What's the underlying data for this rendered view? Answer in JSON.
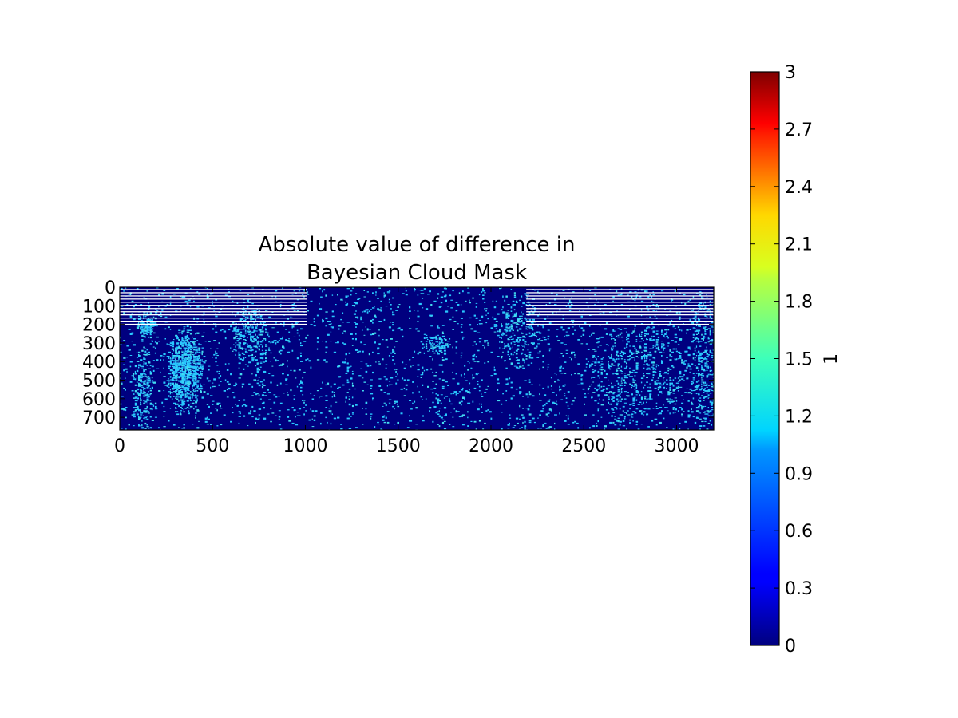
{
  "chart_data": {
    "type": "heatmap",
    "title_lines": [
      "Absolute value of difference in",
      "Bayesian Cloud Mask"
    ],
    "xlim": [
      0,
      3200
    ],
    "ylim": [
      0,
      768
    ],
    "x_ticks": [
      0,
      500,
      1000,
      1500,
      2000,
      2500,
      3000
    ],
    "y_ticks": [
      0,
      100,
      200,
      300,
      400,
      500,
      600,
      700
    ],
    "colorbar": {
      "label": "1",
      "range": [
        0,
        3
      ],
      "ticks": [
        "0",
        "0.3",
        "0.6",
        "0.9",
        "1.2",
        "1.5",
        "1.8",
        "2.1",
        "2.4",
        "2.7",
        "3"
      ],
      "tick_values": [
        0,
        0.3,
        0.6,
        0.9,
        1.2,
        1.5,
        1.8,
        2.1,
        2.4,
        2.7,
        3
      ],
      "colormap": "jet"
    },
    "background_value": 0,
    "speckle_value": 1,
    "colors": {
      "background": "#00007f",
      "speckle": "#29c8ff",
      "speckle_light": "#44dcf0",
      "stripe": "#ffffff",
      "axes": "#000000"
    },
    "striped_column_ranges": [
      [
        0,
        1010
      ],
      [
        2190,
        3200
      ]
    ],
    "striped_row_range": [
      0,
      200
    ]
  }
}
